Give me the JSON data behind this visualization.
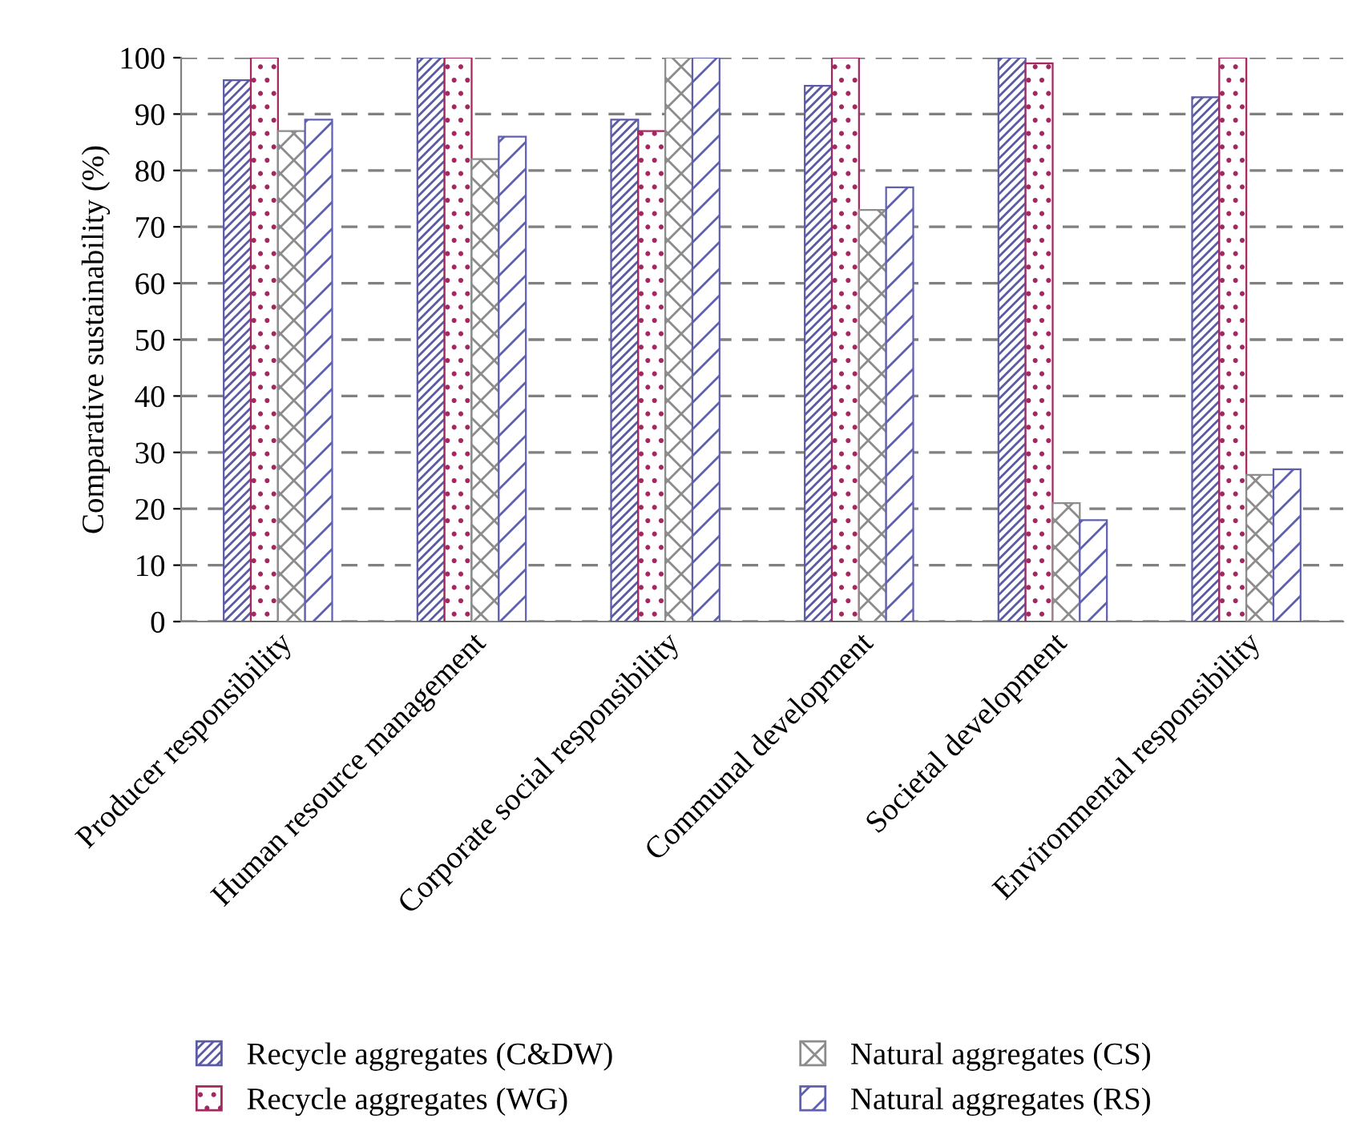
{
  "chart_data": {
    "type": "bar",
    "ylabel": "Comparative sustainability (%)",
    "categories": [
      "Producer responsibility",
      "Human resource management",
      "Corporate social responsibility",
      "Communal development",
      "Societal development",
      "Environmental responsibility"
    ],
    "series": [
      {
        "name": "Recycle aggregates (C&DW)",
        "color": "#5b5ba3",
        "values": [
          96,
          100,
          89,
          95,
          100,
          93
        ]
      },
      {
        "name": "Recycle aggregates (WG)",
        "color": "#a3285f",
        "values": [
          100,
          100,
          87,
          100,
          99,
          100
        ]
      },
      {
        "name": "Natural aggregates (CS)",
        "color": "#8c8c8c",
        "values": [
          87,
          82,
          100,
          73,
          21,
          26
        ]
      },
      {
        "name": "Natural aggregates (RS)",
        "color": "#6060b0",
        "values": [
          89,
          86,
          100,
          77,
          18,
          27
        ]
      }
    ],
    "ylim": [
      0,
      100
    ],
    "yticks": [
      0,
      10,
      20,
      30,
      40,
      50,
      60,
      70,
      80,
      90,
      100
    ],
    "grid": "y",
    "legend": "bottom"
  }
}
